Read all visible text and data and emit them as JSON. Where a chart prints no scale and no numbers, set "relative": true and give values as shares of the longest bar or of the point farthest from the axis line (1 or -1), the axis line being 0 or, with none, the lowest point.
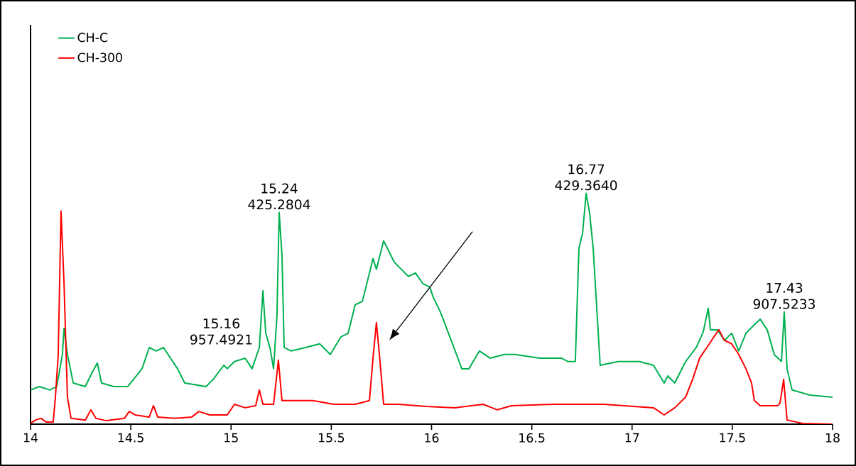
{
  "chart_data": {
    "type": "line",
    "relative": true,
    "x": [
      14.0,
      14.043,
      14.096,
      14.131,
      14.159,
      14.167,
      14.184,
      14.213,
      14.273,
      14.308,
      14.333,
      14.354,
      14.415,
      14.485,
      14.556,
      14.592,
      14.627,
      14.663,
      14.698,
      14.733,
      14.769,
      14.875,
      14.911,
      14.964,
      14.981,
      15.017,
      15.07,
      15.105,
      15.141,
      15.159,
      15.173,
      15.194,
      15.212,
      15.229,
      15.24,
      15.254,
      15.265,
      15.3,
      15.371,
      15.442,
      15.495,
      15.548,
      15.584,
      15.619,
      15.655,
      15.708,
      15.725,
      15.761,
      15.779,
      15.814,
      15.849,
      15.885,
      15.92,
      15.956,
      15.991,
      16.009,
      16.044,
      16.098,
      16.151,
      16.186,
      16.239,
      16.292,
      16.363,
      16.416,
      16.54,
      16.647,
      16.682,
      16.717,
      16.735,
      16.753,
      16.771,
      16.788,
      16.806,
      16.841,
      16.93,
      17.036,
      17.107,
      17.16,
      17.178,
      17.213,
      17.267,
      17.32,
      17.355,
      17.38,
      17.391,
      17.426,
      17.461,
      17.497,
      17.532,
      17.568,
      17.603,
      17.639,
      17.674,
      17.709,
      17.745,
      17.759,
      17.773,
      17.798,
      17.887,
      18.0
    ],
    "series": [
      {
        "name": "CH-C",
        "color": "#00b050",
        "values": [
          0.148,
          0.163,
          0.148,
          0.163,
          0.302,
          0.415,
          0.302,
          0.178,
          0.163,
          0.225,
          0.265,
          0.178,
          0.163,
          0.163,
          0.24,
          0.332,
          0.317,
          0.332,
          0.286,
          0.24,
          0.178,
          0.163,
          0.194,
          0.255,
          0.24,
          0.271,
          0.286,
          0.24,
          0.332,
          0.578,
          0.394,
          0.332,
          0.24,
          0.471,
          0.917,
          0.732,
          0.332,
          0.317,
          0.332,
          0.348,
          0.302,
          0.378,
          0.394,
          0.517,
          0.532,
          0.717,
          0.671,
          0.794,
          0.763,
          0.702,
          0.671,
          0.64,
          0.655,
          0.609,
          0.594,
          0.548,
          0.486,
          0.363,
          0.24,
          0.24,
          0.317,
          0.286,
          0.302,
          0.302,
          0.286,
          0.286,
          0.271,
          0.271,
          0.763,
          0.825,
          1,
          0.917,
          0.763,
          0.255,
          0.271,
          0.271,
          0.255,
          0.178,
          0.209,
          0.178,
          0.271,
          0.332,
          0.4,
          0.502,
          0.409,
          0.409,
          0.363,
          0.394,
          0.317,
          0.394,
          0.425,
          0.455,
          0.409,
          0.302,
          0.271,
          0.486,
          0.24,
          0.148,
          0.126,
          0.117
        ]
      },
      {
        "name": "CH-300",
        "color": "#ff0000",
        "x": [
          14.0,
          14.025,
          14.053,
          14.078,
          14.113,
          14.124,
          14.138,
          14.152,
          14.167,
          14.184,
          14.202,
          14.273,
          14.301,
          14.326,
          14.379,
          14.468,
          14.492,
          14.521,
          14.592,
          14.613,
          14.634,
          14.716,
          14.804,
          14.84,
          14.893,
          14.981,
          15.017,
          15.07,
          15.123,
          15.141,
          15.159,
          15.212,
          15.236,
          15.254,
          15.3,
          15.407,
          15.513,
          15.619,
          15.69,
          15.708,
          15.725,
          15.743,
          15.761,
          15.832,
          15.973,
          16.115,
          16.257,
          16.328,
          16.399,
          16.611,
          16.859,
          17.107,
          17.16,
          17.213,
          17.267,
          17.302,
          17.337,
          17.373,
          17.408,
          17.433,
          17.461,
          17.497,
          17.532,
          17.568,
          17.596,
          17.61,
          17.639,
          17.727,
          17.738,
          17.756,
          17.773,
          17.851,
          18.0
        ],
        "values": [
          0.003,
          0.018,
          0.025,
          0.009,
          0.009,
          0.117,
          0.302,
          0.923,
          0.609,
          0.117,
          0.025,
          0.018,
          0.062,
          0.025,
          0.015,
          0.025,
          0.055,
          0.04,
          0.031,
          0.08,
          0.031,
          0.025,
          0.031,
          0.055,
          0.04,
          0.04,
          0.086,
          0.071,
          0.08,
          0.148,
          0.086,
          0.086,
          0.277,
          0.102,
          0.102,
          0.102,
          0.086,
          0.086,
          0.102,
          0.286,
          0.44,
          0.271,
          0.086,
          0.086,
          0.077,
          0.071,
          0.086,
          0.062,
          0.08,
          0.086,
          0.086,
          0.071,
          0.04,
          0.071,
          0.117,
          0.194,
          0.286,
          0.332,
          0.378,
          0.409,
          0.363,
          0.348,
          0.302,
          0.24,
          0.178,
          0.102,
          0.08,
          0.08,
          0.092,
          0.194,
          0.018,
          0.003,
          0
        ]
      }
    ],
    "xlim": [
      14,
      18
    ],
    "xticks": [
      14,
      14.5,
      15,
      15.5,
      16,
      16.5,
      17,
      17.5,
      18
    ],
    "legend": "top left",
    "grid": false,
    "annotations": [
      {
        "text": "15.16 957.4921",
        "x": 15.141,
        "y": 0.332
      },
      {
        "text": "15.24 425.2804",
        "x": 15.24,
        "y": 0.917
      },
      {
        "text": "16.77 429.3640",
        "x": 16.771,
        "y": 1
      },
      {
        "text": "17.43 907.5233",
        "x": 17.759,
        "y": 0.486
      }
    ]
  }
}
